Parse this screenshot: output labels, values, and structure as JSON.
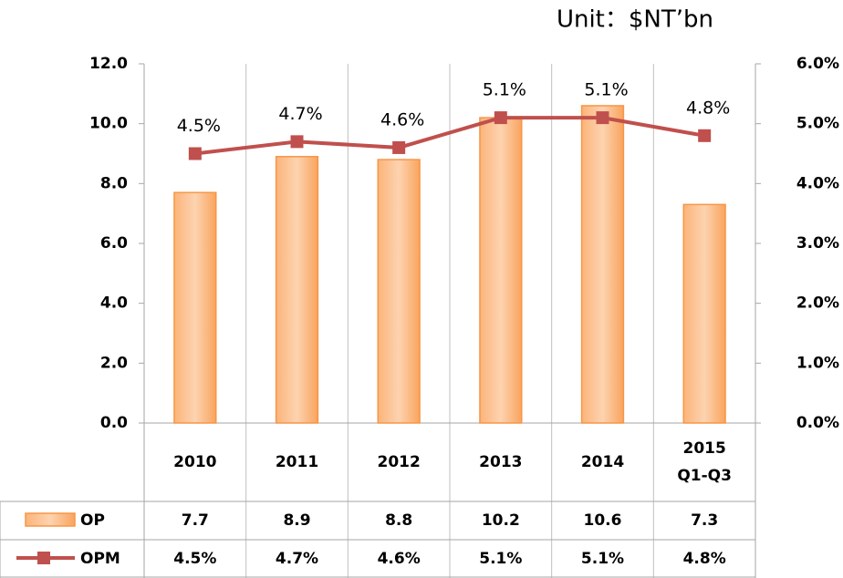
{
  "chart_data": {
    "type": "bar_line",
    "unit": "Unit：$NT’bn",
    "categories": [
      "2010",
      "2011",
      "2012",
      "2013",
      "2014",
      "2015 Q1-Q3"
    ],
    "series": [
      {
        "name": "OP",
        "color": "#f79646",
        "values": [
          7.7,
          8.9,
          8.8,
          10.2,
          10.6,
          7.3
        ]
      },
      {
        "name": "OPM",
        "color": "#c0504d",
        "axis": "y2",
        "values": [
          4.5,
          4.7,
          4.6,
          5.1,
          5.1,
          4.8
        ],
        "value_labels": [
          "4.5%",
          "4.7%",
          "4.6%",
          "5.1%",
          "5.1%",
          "4.8%"
        ]
      }
    ],
    "ylim": [
      0,
      12
    ],
    "yticks": [
      {
        "value": 0,
        "label": "0.0"
      },
      {
        "value": 2,
        "label": "2.0"
      },
      {
        "value": 4,
        "label": "4.0"
      },
      {
        "value": 6,
        "label": "6.0"
      },
      {
        "value": 8,
        "label": "8.0"
      },
      {
        "value": 10,
        "label": "10.0"
      },
      {
        "value": 12,
        "label": "12.0"
      }
    ],
    "y2lim": [
      0,
      6
    ],
    "y2ticks": [
      {
        "value": 0,
        "label": "0.0%"
      },
      {
        "value": 1,
        "label": "1.0%"
      },
      {
        "value": 2,
        "label": "2.0%"
      },
      {
        "value": 3,
        "label": "3.0%"
      },
      {
        "value": 4,
        "label": "4.0%"
      },
      {
        "value": 5,
        "label": "5.0%"
      },
      {
        "value": 6,
        "label": "6.0%"
      }
    ],
    "grid": true
  }
}
